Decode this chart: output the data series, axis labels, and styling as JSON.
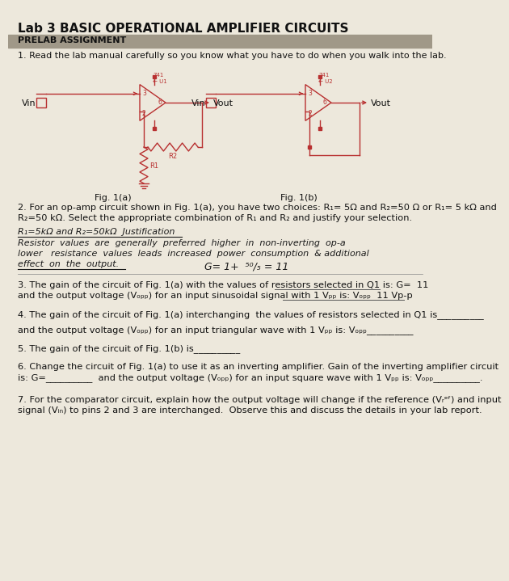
{
  "title": "Lab 3 BASIC OPERATIONAL AMPLIFIER CIRCUITS",
  "prelab_header": "PRELAB ASSIGNMENT",
  "bg_color": "#ede8dc",
  "header_bg": "#a09888",
  "text_color": "#111111",
  "circuit_color": "#b83030",
  "fig1a_label": "Fig. 1(a)",
  "fig1b_label": "Fig. 1(b)",
  "q1": "1. Read the lab manual carefully so you know what you have to do when you walk into the lab.",
  "q2a": "2. For an op-amp circuit shown in Fig. 1(a), you have two choices: R₁= 5Ω and R₂=50 Ω or R₁= 5 kΩ and",
  "q2b": "R₂=50 kΩ. Select the appropriate combination of R₁ and R₂ and justify your selection.",
  "hw1": "R₁=5kΩ and R₂=50kΩ  Justification",
  "hw2": "Resistor  values  are  generally  preferred  higher  in  non-inverting  op-a",
  "hw3": "lower   resistance  values  leads  increased  power  consumption  & additional",
  "hw4": "effect  on  the  output.",
  "hw5": "G= 1+  ⁵⁰/₅ = 11",
  "q3a": "3. The gain of the circuit of Fig. 1(a) with the values of resistors selected in Q1 is: G=  11",
  "q3b": "and the output voltage (Vₒₚₚ) for an input sinusoidal signal with 1 Vₚₚ is: Vₒₚₚ  11 Vp-p",
  "q4a": "4. The gain of the circuit of Fig. 1(a) interchanging  the values of resistors selected in Q1 is__________",
  "q4b": "and the output voltage (Vₒₚₚ) for an input triangular wave with 1 Vₚₚ is: Vₒₚₚ__________",
  "q5": "5. The gain of the circuit of Fig. 1(b) is__________",
  "q6a": "6. Change the circuit of Fig. 1(a) to use it as an inverting amplifier. Gain of the inverting amplifier circuit",
  "q6b": "is: G=__________  and the output voltage (Vₒₚₚ) for an input square wave with 1 Vₚₚ is: Vₒₚₚ__________.",
  "q7a": "7. For the comparator circuit, explain how the output voltage will change if the reference (Vᵣᵉᶠ) and input",
  "q7b": "signal (Vᵢₙ) to pins 2 and 3 are interchanged.  Observe this and discuss the details in your lab report."
}
